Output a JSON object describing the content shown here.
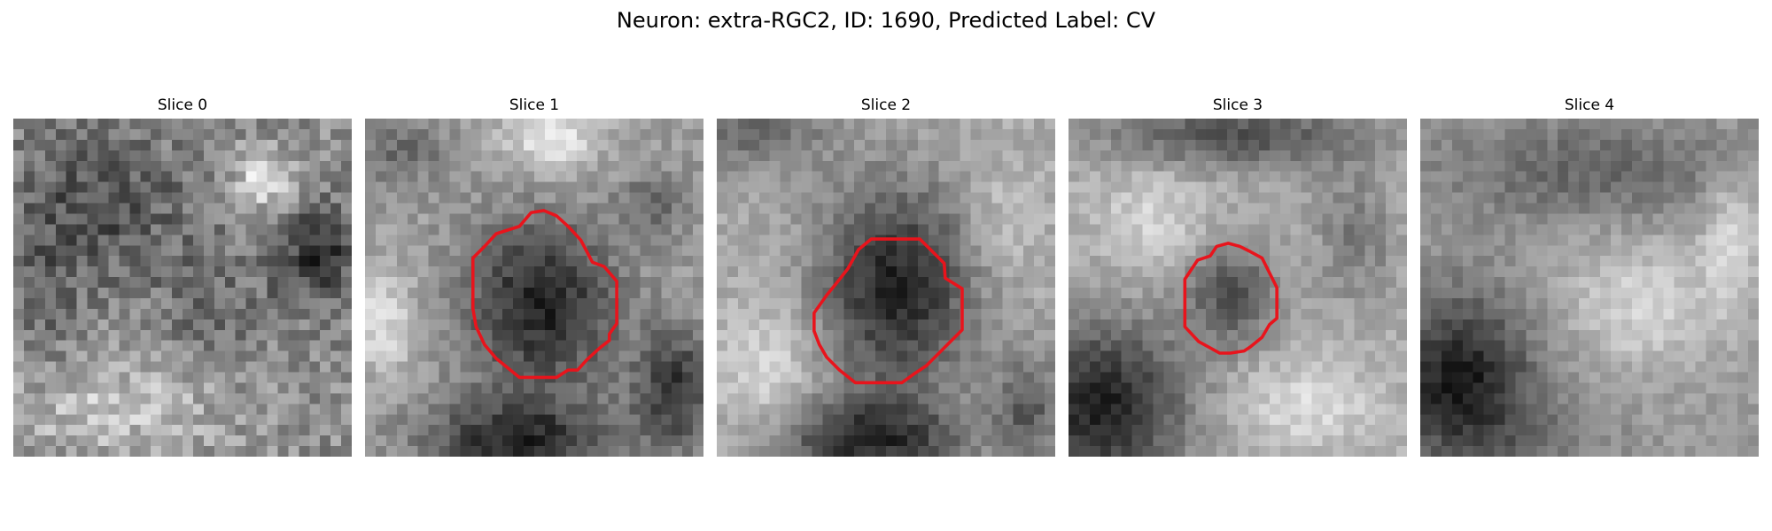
{
  "figure": {
    "title": "Neuron: extra-RGC2, ID: 1690, Predicted Label: CV"
  },
  "panels": [
    {
      "title": "Slice 0",
      "has_contour": false
    },
    {
      "title": "Slice 1",
      "has_contour": true
    },
    {
      "title": "Slice 2",
      "has_contour": true
    },
    {
      "title": "Slice 3",
      "has_contour": true
    },
    {
      "title": "Slice 4",
      "has_contour": false
    }
  ],
  "colors": {
    "contour": "#e8141c",
    "background": "#ffffff"
  }
}
